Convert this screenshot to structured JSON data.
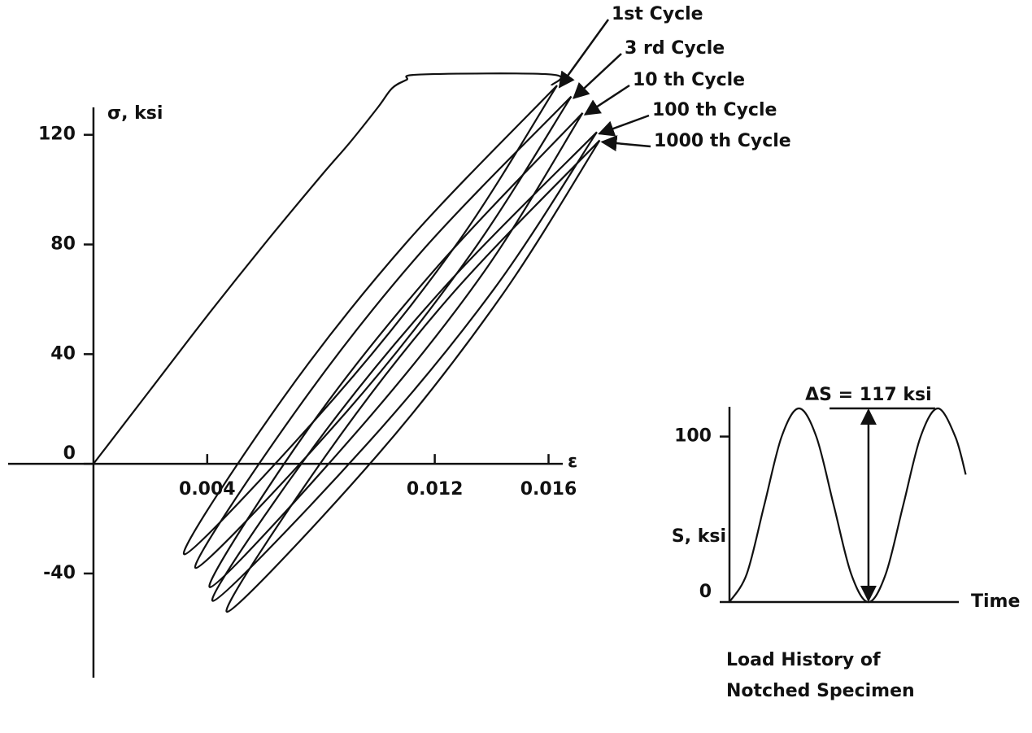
{
  "chart_data": [
    {
      "type": "line",
      "ylabel": "σ, ksi",
      "xlabel": "ε",
      "xlim": [
        -0.003,
        0.0165
      ],
      "ylim": [
        -78,
        130
      ],
      "xticks": [
        0.004,
        0.012,
        0.016
      ],
      "yticks": [
        -40,
        0,
        40,
        80,
        120
      ],
      "color": "#111111",
      "series": [
        {
          "x": [
            0,
            0.002,
            0.004,
            0.006,
            0.008,
            0.009,
            0.01,
            0.0105,
            0.011,
            0.0115,
            0.0161,
            0.0161
          ],
          "y": [
            0,
            27,
            54,
            80,
            105,
            117,
            130,
            137,
            140,
            142,
            142,
            138
          ]
        },
        {
          "name": "1st Cycle",
          "x": [
            0.0163,
            0.01103,
            0.00667,
            0.0032,
            0.00847,
            0.01283,
            0.0163
          ],
          "y": [
            138,
            81,
            24,
            -33,
            24,
            81,
            138
          ]
        },
        {
          "name": "3 rd Cycle",
          "x": [
            0.0168,
            0.0115,
            0.0071,
            0.0036,
            0.0089,
            0.0133,
            0.0168
          ],
          "y": [
            134,
            77,
            19,
            -38,
            19,
            77,
            134
          ]
        },
        {
          "name": "10 th Cycle",
          "x": [
            0.0172,
            0.01193,
            0.00757,
            0.0041,
            0.00937,
            0.01373,
            0.0172
          ],
          "y": [
            128,
            70,
            13,
            -45,
            13,
            70,
            128
          ]
        },
        {
          "name": "100 th Cycle",
          "x": [
            0.0177,
            0.0123,
            0.0078,
            0.0042,
            0.0096,
            0.0141,
            0.0177
          ],
          "y": [
            121,
            64,
            7,
            -50,
            7,
            64,
            121
          ]
        },
        {
          "name": "1000 th Cycle",
          "x": [
            0.0178,
            0.01253,
            0.00817,
            0.0047,
            0.00997,
            0.01433,
            0.0178
          ],
          "y": [
            118,
            61,
            3,
            -54,
            3,
            61,
            118
          ]
        }
      ]
    },
    {
      "type": "line",
      "title_lines": [
        "Load History of",
        "Notched Specimen"
      ],
      "ylabel": "S, ksi",
      "xlabel": "Time",
      "xlim": [
        0,
        1.65
      ],
      "ylim": [
        0,
        118
      ],
      "yticks": [
        0,
        100
      ],
      "color": "#111111",
      "x": [
        0,
        0.125,
        0.25,
        0.375,
        0.5,
        0.625,
        0.75,
        0.875,
        1,
        1.125,
        1.25,
        1.375,
        1.5,
        1.625,
        1.7
      ],
      "values": [
        0,
        17.1,
        58.5,
        99.9,
        117,
        99.9,
        58.5,
        17.1,
        0,
        17.1,
        58.5,
        99.9,
        117,
        99.9,
        77
      ],
      "annotation": {
        "text": "ΔS = 117 ksi",
        "x": 1,
        "from": 0,
        "to": 117
      }
    }
  ]
}
